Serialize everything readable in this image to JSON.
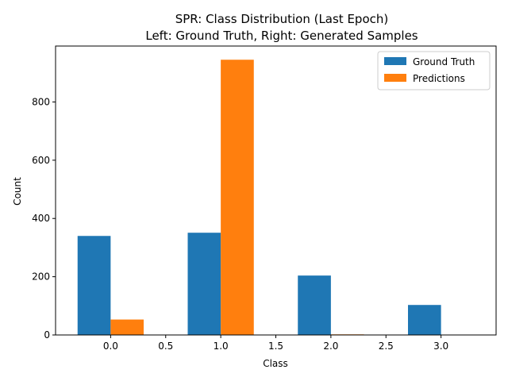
{
  "chart_data": {
    "type": "bar",
    "title": "SPR: Class Distribution (Last Epoch)",
    "subtitle": "Left: Ground Truth, Right: Generated Samples",
    "xlabel": "Class",
    "ylabel": "Count",
    "categories": [
      0,
      1,
      2,
      3
    ],
    "series": [
      {
        "name": "Ground Truth",
        "color": "#1f77b4",
        "values": [
          340,
          351,
          204,
          103
        ]
      },
      {
        "name": "Predictions",
        "color": "#ff7f0e",
        "values": [
          53,
          945,
          2,
          0
        ]
      }
    ],
    "bar_width": 0.3,
    "xlim": [
      -0.5,
      3.5
    ],
    "ylim": [
      0,
      992
    ],
    "x_ticks": [
      0.0,
      0.5,
      1.0,
      1.5,
      2.0,
      2.5,
      3.0
    ],
    "x_tick_labels": [
      "0.0",
      "0.5",
      "1.0",
      "1.5",
      "2.0",
      "2.5",
      "3.0"
    ],
    "y_ticks": [
      0,
      200,
      400,
      600,
      800
    ],
    "y_tick_labels": [
      "0",
      "200",
      "400",
      "600",
      "800"
    ],
    "grid": false,
    "legend_position": "upper right"
  }
}
